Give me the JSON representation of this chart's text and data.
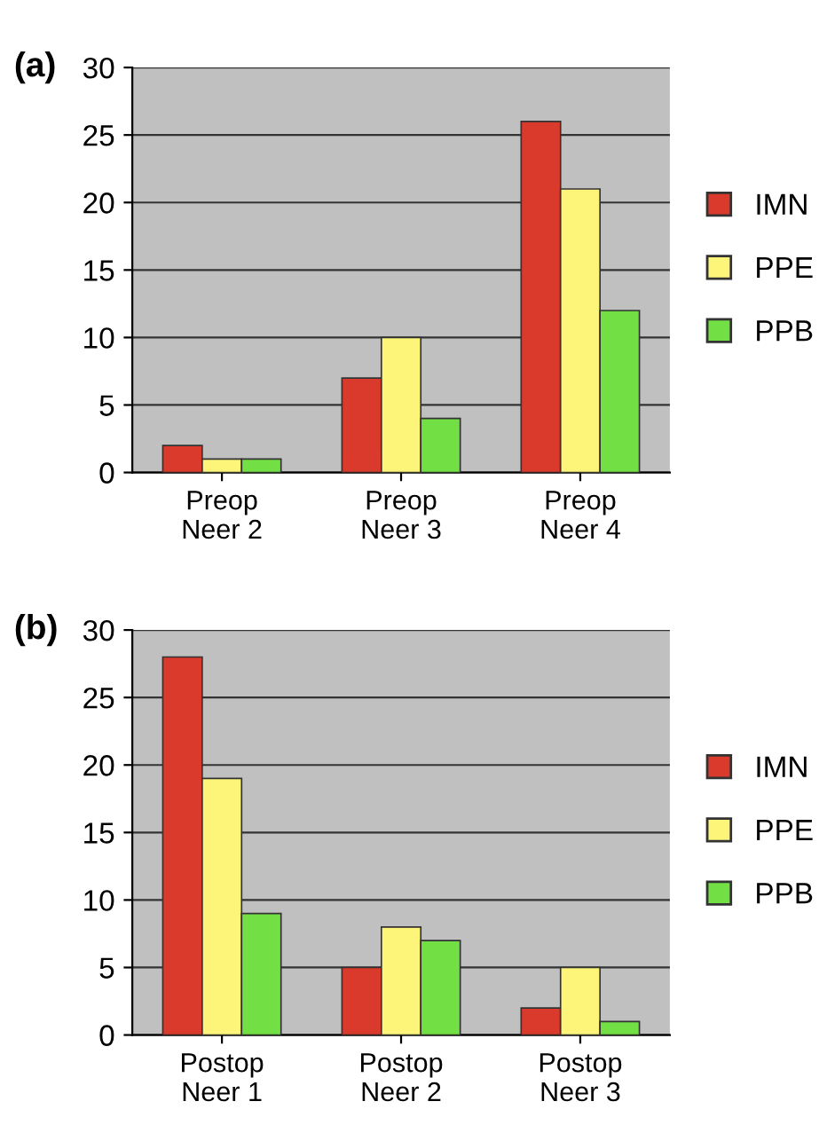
{
  "chart_data": [
    {
      "type": "bar",
      "title": "(a)",
      "categories": [
        "Preop\nNeer 2",
        "Preop\nNeer 3",
        "Preop\nNeer 4"
      ],
      "ylim": [
        0,
        30
      ],
      "yticks": [
        0,
        5,
        10,
        15,
        20,
        25,
        30
      ],
      "grid": "y",
      "legend": "right",
      "series": [
        {
          "name": "IMN",
          "color": "#d93a2b",
          "values": [
            2,
            7,
            26
          ]
        },
        {
          "name": "PPE",
          "color": "#fdf57a",
          "values": [
            1,
            10,
            21
          ]
        },
        {
          "name": "PPB",
          "color": "#72e045",
          "values": [
            1,
            4,
            12
          ]
        }
      ]
    },
    {
      "type": "bar",
      "title": "(b)",
      "categories": [
        "Postop\nNeer 1",
        "Postop\nNeer 2",
        "Postop\nNeer 3"
      ],
      "ylim": [
        0,
        30
      ],
      "yticks": [
        0,
        5,
        10,
        15,
        20,
        25,
        30
      ],
      "grid": "y",
      "legend": "right",
      "series": [
        {
          "name": "IMN",
          "color": "#d93a2b",
          "values": [
            28,
            5,
            2
          ]
        },
        {
          "name": "PPE",
          "color": "#fdf57a",
          "values": [
            19,
            8,
            5
          ]
        },
        {
          "name": "PPB",
          "color": "#72e045",
          "values": [
            9,
            7,
            1
          ]
        }
      ]
    }
  ]
}
